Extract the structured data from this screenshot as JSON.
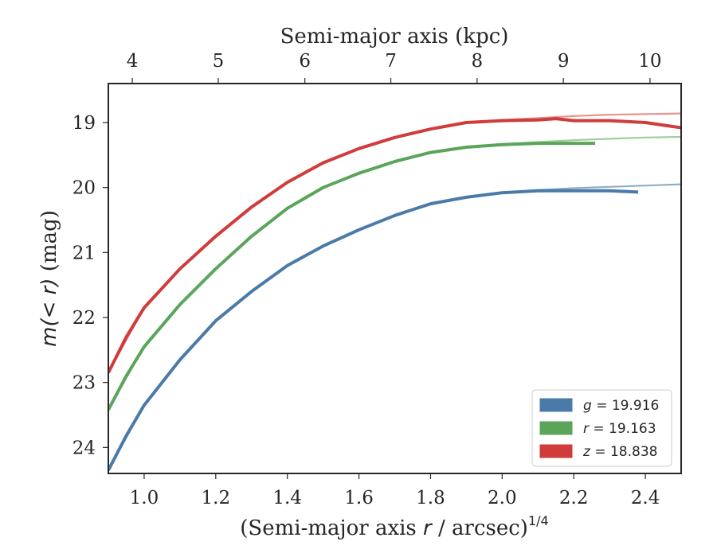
{
  "chart_data": {
    "type": "line",
    "title": "",
    "xlabel": "(Semi-major axis r / arcsec)",
    "xlabel_prefix": "(Semi-major axis ",
    "xlabel_var": "r",
    "xlabel_suffix": " / arcsec)",
    "xlabel_exponent": "1/4",
    "ylabel": "m(< r) (mag)",
    "ylabel_var": "m(< r)",
    "ylabel_unit": " (mag)",
    "top_xlabel": "Semi-major axis (kpc)",
    "xlim": [
      0.9,
      2.5
    ],
    "ylim": [
      24.4,
      18.4
    ],
    "y_inverted": true,
    "x_ticks": [
      1.0,
      1.2,
      1.4,
      1.6,
      1.8,
      2.0,
      2.2,
      2.4
    ],
    "x_tick_labels": [
      "1.0",
      "1.2",
      "1.4",
      "1.6",
      "1.8",
      "2.0",
      "2.2",
      "2.4"
    ],
    "y_ticks": [
      19,
      20,
      21,
      22,
      23,
      24
    ],
    "y_tick_labels": [
      "19",
      "20",
      "21",
      "22",
      "23",
      "24"
    ],
    "top_x_ticks_kpc": [
      4,
      5,
      6,
      7,
      8,
      9,
      10
    ],
    "top_x_tick_labels": [
      "4",
      "5",
      "6",
      "7",
      "8",
      "9",
      "10"
    ],
    "top_x_tick_positions": [
      0.967,
      1.207,
      1.449,
      1.689,
      1.93,
      2.171,
      2.413
    ],
    "grid": false,
    "legend_position": "lower-right",
    "series": [
      {
        "name": "g = 19.916",
        "legend_var": "g",
        "legend_value": " = 19.916",
        "color": "#4a7aa8",
        "model_color": "#92afc6",
        "x": [
          0.9,
          0.95,
          1.0,
          1.1,
          1.2,
          1.3,
          1.4,
          1.5,
          1.6,
          1.7,
          1.8,
          1.9,
          2.0,
          2.1,
          2.2,
          2.3,
          2.38
        ],
        "y": [
          24.35,
          23.82,
          23.35,
          22.65,
          22.05,
          21.6,
          21.2,
          20.9,
          20.65,
          20.43,
          20.25,
          20.15,
          20.08,
          20.05,
          20.05,
          20.05,
          20.07
        ],
        "model_x": [
          0.9,
          1.0,
          1.1,
          1.2,
          1.3,
          1.4,
          1.5,
          1.6,
          1.7,
          1.8,
          1.9,
          2.0,
          2.1,
          2.2,
          2.3,
          2.4,
          2.5
        ],
        "model_y": [
          24.35,
          23.35,
          22.65,
          22.05,
          21.6,
          21.2,
          20.9,
          20.64,
          20.43,
          20.26,
          20.15,
          20.08,
          20.04,
          20.01,
          19.99,
          19.97,
          19.95
        ]
      },
      {
        "name": "r = 19.163",
        "legend_var": "r",
        "legend_value": " = 19.163",
        "color": "#5aa55a",
        "model_color": "#a3cc9f",
        "x": [
          0.9,
          0.95,
          1.0,
          1.1,
          1.2,
          1.3,
          1.4,
          1.5,
          1.6,
          1.7,
          1.8,
          1.9,
          2.0,
          2.1,
          2.2,
          2.26
        ],
        "y": [
          23.42,
          22.9,
          22.45,
          21.8,
          21.25,
          20.75,
          20.32,
          20.0,
          19.78,
          19.6,
          19.46,
          19.38,
          19.34,
          19.32,
          19.32,
          19.32
        ],
        "model_x": [
          0.9,
          1.0,
          1.1,
          1.2,
          1.3,
          1.4,
          1.5,
          1.6,
          1.7,
          1.8,
          1.9,
          2.0,
          2.1,
          2.2,
          2.3,
          2.4,
          2.5
        ],
        "model_y": [
          23.42,
          22.45,
          21.8,
          21.25,
          20.75,
          20.32,
          20.0,
          19.77,
          19.6,
          19.46,
          19.38,
          19.33,
          19.3,
          19.27,
          19.25,
          19.23,
          19.22
        ]
      },
      {
        "name": "z = 18.838",
        "legend_var": "z",
        "legend_value": " = 18.838",
        "color": "#d03b3b",
        "model_color": "#e89292",
        "x": [
          0.9,
          0.95,
          1.0,
          1.1,
          1.2,
          1.3,
          1.4,
          1.5,
          1.6,
          1.7,
          1.8,
          1.9,
          2.0,
          2.1,
          2.15,
          2.2,
          2.3,
          2.4,
          2.5
        ],
        "y": [
          22.85,
          22.3,
          21.85,
          21.25,
          20.75,
          20.3,
          19.92,
          19.62,
          19.4,
          19.23,
          19.1,
          19.0,
          18.97,
          18.96,
          18.94,
          18.97,
          18.97,
          19.0,
          19.08
        ],
        "model_x": [
          0.9,
          1.0,
          1.1,
          1.2,
          1.3,
          1.4,
          1.5,
          1.6,
          1.7,
          1.8,
          1.9,
          2.0,
          2.1,
          2.2,
          2.3,
          2.4,
          2.5
        ],
        "model_y": [
          22.85,
          21.85,
          21.25,
          20.75,
          20.3,
          19.92,
          19.62,
          19.4,
          19.23,
          19.1,
          19.01,
          18.96,
          18.93,
          18.9,
          18.88,
          18.87,
          18.86
        ]
      }
    ]
  }
}
